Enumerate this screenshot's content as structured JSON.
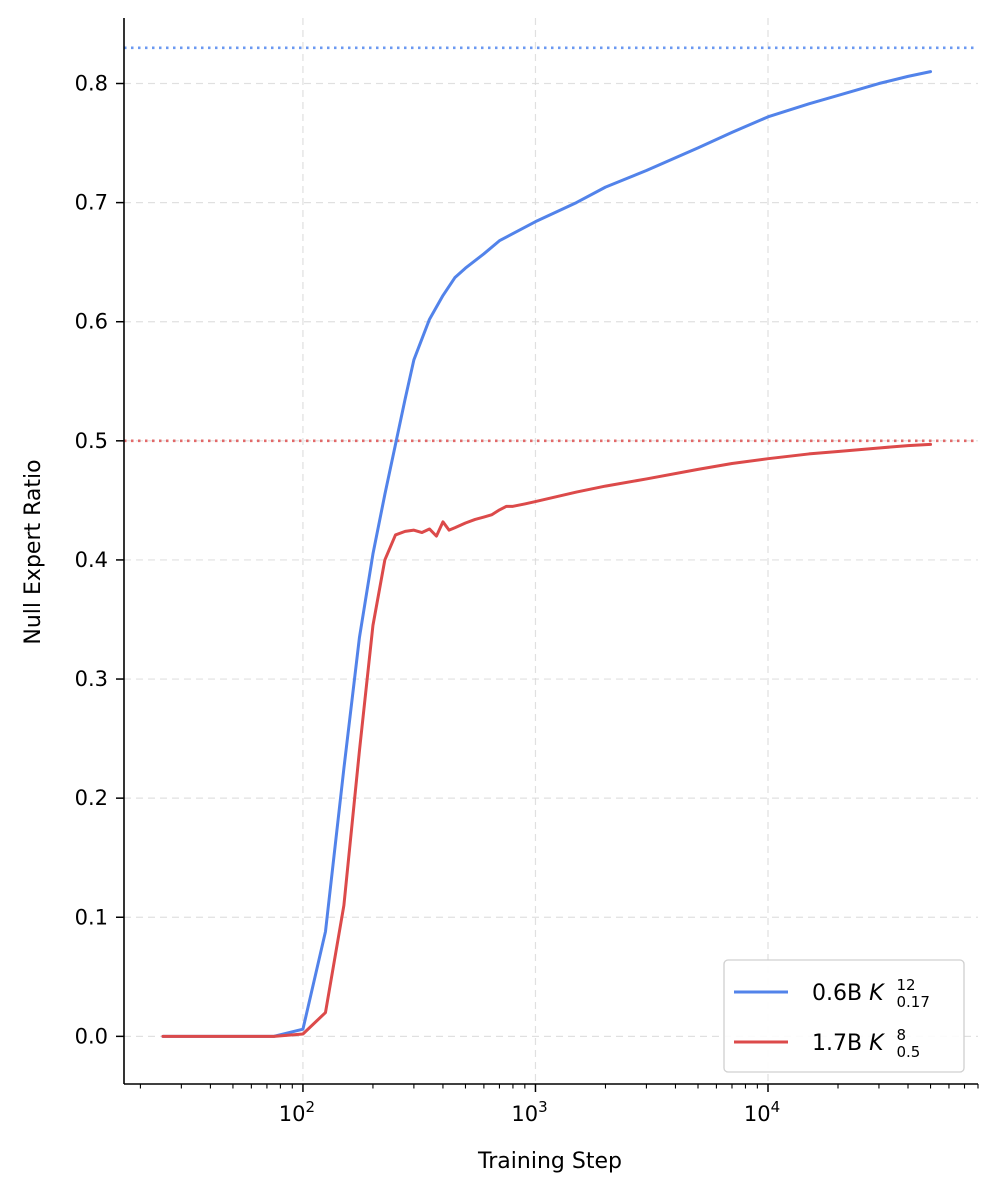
{
  "chart_data": {
    "type": "line",
    "title": "",
    "xlabel": "Training Step",
    "ylabel": "Null Expert Ratio",
    "xscale": "log",
    "xlim": [
      17,
      80000
    ],
    "ylim": [
      -0.04,
      0.855
    ],
    "x_ticks": [
      {
        "value": 100,
        "base": "10",
        "exp": "2"
      },
      {
        "value": 1000,
        "base": "10",
        "exp": "3"
      },
      {
        "value": 10000,
        "base": "10",
        "exp": "4"
      }
    ],
    "y_ticks": [
      {
        "value": 0.0,
        "label": "0.0"
      },
      {
        "value": 0.1,
        "label": "0.1"
      },
      {
        "value": 0.2,
        "label": "0.2"
      },
      {
        "value": 0.3,
        "label": "0.3"
      },
      {
        "value": 0.4,
        "label": "0.4"
      },
      {
        "value": 0.5,
        "label": "0.5"
      },
      {
        "value": 0.6,
        "label": "0.6"
      },
      {
        "value": 0.7,
        "label": "0.7"
      },
      {
        "value": 0.8,
        "label": "0.8"
      }
    ],
    "grid": true,
    "legend_position": "lower-right",
    "reference_lines": [
      {
        "y": 0.83,
        "color": "#5b8ff0",
        "style": "dotted"
      },
      {
        "y": 0.5,
        "color": "#e05a5a",
        "style": "dotted"
      }
    ],
    "series": [
      {
        "name": "0.6B",
        "name_math_base": "K",
        "name_math_sup": "12",
        "name_math_sub": "0.17",
        "color": "#5283ea",
        "points": [
          [
            25,
            0.0
          ],
          [
            50,
            0.0
          ],
          [
            75,
            0.0
          ],
          [
            100,
            0.006
          ],
          [
            125,
            0.088
          ],
          [
            150,
            0.225
          ],
          [
            175,
            0.335
          ],
          [
            200,
            0.405
          ],
          [
            225,
            0.455
          ],
          [
            250,
            0.497
          ],
          [
            275,
            0.535
          ],
          [
            300,
            0.568
          ],
          [
            350,
            0.602
          ],
          [
            400,
            0.622
          ],
          [
            450,
            0.637
          ],
          [
            500,
            0.645
          ],
          [
            600,
            0.657
          ],
          [
            700,
            0.668
          ],
          [
            800,
            0.674
          ],
          [
            1000,
            0.684
          ],
          [
            1500,
            0.7
          ],
          [
            2000,
            0.713
          ],
          [
            3000,
            0.727
          ],
          [
            5000,
            0.746
          ],
          [
            7000,
            0.759
          ],
          [
            10000,
            0.772
          ],
          [
            15000,
            0.783
          ],
          [
            20000,
            0.79
          ],
          [
            30000,
            0.8
          ],
          [
            40000,
            0.806
          ],
          [
            50000,
            0.81
          ]
        ]
      },
      {
        "name": "1.7B",
        "name_math_base": "K",
        "name_math_sup": "8",
        "name_math_sub": "0.5",
        "color": "#dc4a4a",
        "points": [
          [
            25,
            0.0
          ],
          [
            50,
            0.0
          ],
          [
            75,
            0.0
          ],
          [
            100,
            0.002
          ],
          [
            125,
            0.02
          ],
          [
            150,
            0.11
          ],
          [
            175,
            0.24
          ],
          [
            200,
            0.345
          ],
          [
            225,
            0.4
          ],
          [
            250,
            0.421
          ],
          [
            275,
            0.424
          ],
          [
            300,
            0.425
          ],
          [
            325,
            0.423
          ],
          [
            350,
            0.426
          ],
          [
            375,
            0.42
          ],
          [
            400,
            0.432
          ],
          [
            425,
            0.425
          ],
          [
            450,
            0.427
          ],
          [
            500,
            0.431
          ],
          [
            550,
            0.434
          ],
          [
            600,
            0.436
          ],
          [
            650,
            0.438
          ],
          [
            700,
            0.442
          ],
          [
            750,
            0.445
          ],
          [
            800,
            0.445
          ],
          [
            900,
            0.447
          ],
          [
            1000,
            0.449
          ],
          [
            1500,
            0.457
          ],
          [
            2000,
            0.462
          ],
          [
            3000,
            0.468
          ],
          [
            5000,
            0.476
          ],
          [
            7000,
            0.481
          ],
          [
            10000,
            0.485
          ],
          [
            15000,
            0.489
          ],
          [
            20000,
            0.491
          ],
          [
            30000,
            0.494
          ],
          [
            40000,
            0.496
          ],
          [
            50000,
            0.497
          ]
        ]
      }
    ]
  }
}
